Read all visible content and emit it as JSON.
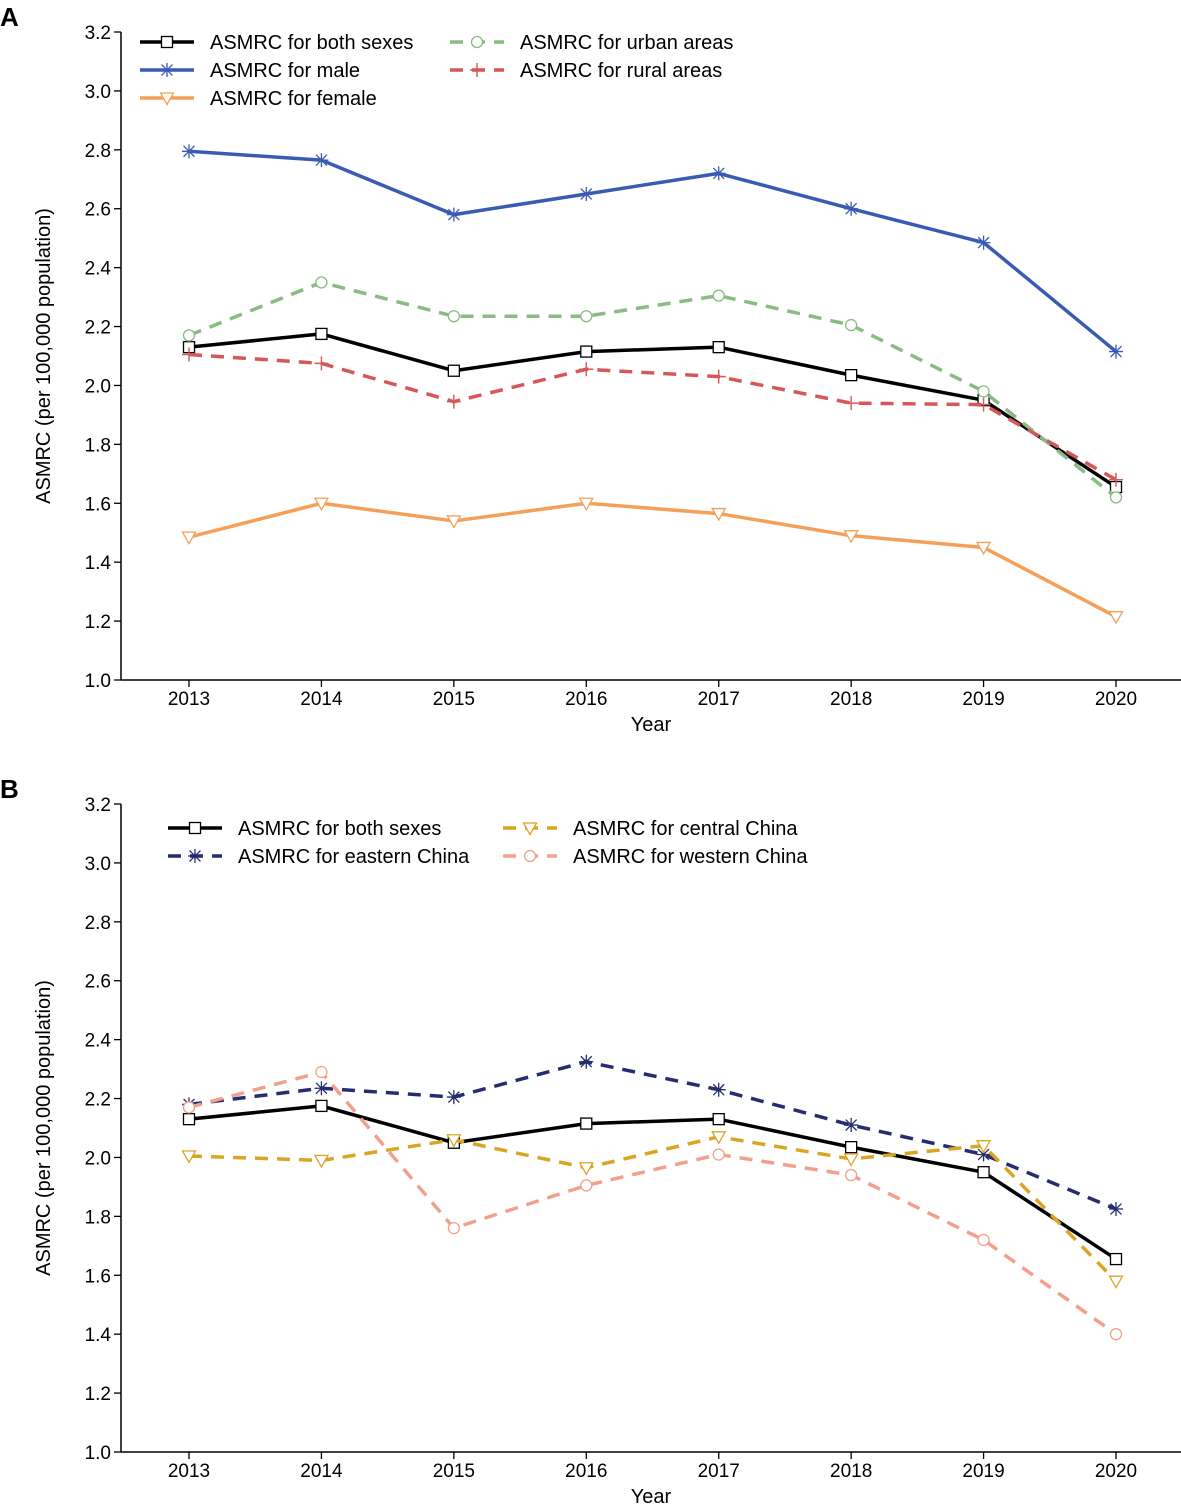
{
  "chart_data": [
    {
      "panel_label": "A",
      "type": "line",
      "title": "",
      "xlabel": "Year",
      "ylabel": "ASMRC (per 100,000 population)",
      "x": [
        2013,
        2014,
        2015,
        2016,
        2017,
        2018,
        2019,
        2020
      ],
      "xticks": [
        "2013",
        "2014",
        "2015",
        "2016",
        "2017",
        "2018",
        "2019",
        "2020"
      ],
      "ylim": [
        1.0,
        3.2
      ],
      "yticks": [
        "1.0",
        "1.2",
        "1.4",
        "1.6",
        "1.8",
        "2.0",
        "2.2",
        "2.4",
        "2.6",
        "2.8",
        "3.0",
        "3.2"
      ],
      "grid": false,
      "legend_position": "top-left",
      "series": [
        {
          "name": "ASMRC for both sexes",
          "color": "#000000",
          "dash": "solid",
          "marker": "square",
          "values": [
            2.13,
            2.175,
            2.05,
            2.115,
            2.13,
            2.035,
            1.95,
            1.655
          ]
        },
        {
          "name": "ASMRC for male",
          "color": "#3a5bb4",
          "dash": "solid",
          "marker": "star",
          "values": [
            2.795,
            2.765,
            2.58,
            2.65,
            2.72,
            2.6,
            2.485,
            2.115
          ]
        },
        {
          "name": "ASMRC for female",
          "color": "#f5a058",
          "dash": "solid",
          "marker": "triangle-down",
          "values": [
            1.485,
            1.6,
            1.54,
            1.6,
            1.565,
            1.49,
            1.45,
            1.215
          ]
        },
        {
          "name": "ASMRC for urban areas",
          "color": "#8abb82",
          "dash": "dashed",
          "marker": "circle",
          "values": [
            2.17,
            2.35,
            2.235,
            2.235,
            2.305,
            2.205,
            1.98,
            1.62
          ]
        },
        {
          "name": "ASMRC for rural areas",
          "color": "#d65757",
          "dash": "dashed",
          "marker": "plus",
          "values": [
            2.105,
            2.075,
            1.945,
            2.055,
            2.03,
            1.94,
            1.935,
            1.68
          ]
        }
      ]
    },
    {
      "panel_label": "B",
      "type": "line",
      "title": "",
      "xlabel": "Year",
      "ylabel": "ASMRC (per 100,000 population)",
      "x": [
        2013,
        2014,
        2015,
        2016,
        2017,
        2018,
        2019,
        2020
      ],
      "xticks": [
        "2013",
        "2014",
        "2015",
        "2016",
        "2017",
        "2018",
        "2019",
        "2020"
      ],
      "ylim": [
        1.0,
        3.2
      ],
      "yticks": [
        "1.0",
        "1.2",
        "1.4",
        "1.6",
        "1.8",
        "2.0",
        "2.2",
        "2.4",
        "2.6",
        "2.8",
        "3.0",
        "3.2"
      ],
      "grid": false,
      "legend_position": "top-left",
      "series": [
        {
          "name": "ASMRC for both sexes",
          "color": "#000000",
          "dash": "solid",
          "marker": "square",
          "values": [
            2.13,
            2.175,
            2.05,
            2.115,
            2.13,
            2.035,
            1.95,
            1.655
          ]
        },
        {
          "name": "ASMRC for eastern China",
          "color": "#262d6f",
          "dash": "dashed",
          "marker": "star",
          "values": [
            2.18,
            2.235,
            2.205,
            2.325,
            2.23,
            2.11,
            2.01,
            1.825
          ]
        },
        {
          "name": "ASMRC for central China",
          "color": "#d9a523",
          "dash": "dashed",
          "marker": "triangle-down",
          "values": [
            2.005,
            1.99,
            2.06,
            1.965,
            2.07,
            1.995,
            2.04,
            1.58
          ]
        },
        {
          "name": "ASMRC for western China",
          "color": "#f2a08c",
          "dash": "dashed",
          "marker": "circle",
          "values": [
            2.17,
            2.29,
            1.76,
            1.905,
            2.01,
            1.94,
            1.72,
            1.4
          ]
        }
      ]
    }
  ]
}
